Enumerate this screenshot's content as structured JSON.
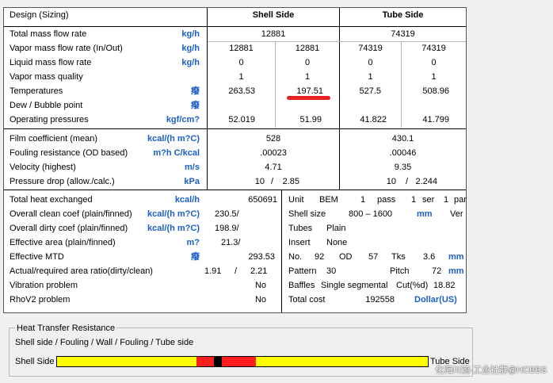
{
  "header": {
    "title": "Design (Sizing)",
    "shell": "Shell Side",
    "tube": "Tube Side"
  },
  "section1": [
    {
      "label": "Total mass flow rate",
      "unit": "kg/h",
      "shell": "12881",
      "tube": "74319"
    },
    {
      "label": "Vapor mass flow rate  (In/Out)",
      "unit": "kg/h",
      "s_in": "12881",
      "s_out": "12881",
      "t_in": "74319",
      "t_out": "74319"
    },
    {
      "label": "Liquid mass flow rate",
      "unit": "kg/h",
      "s_in": "0",
      "s_out": "0",
      "t_in": "0",
      "t_out": "0"
    },
    {
      "label": "Vapor mass quality",
      "unit": "",
      "s_in": "1",
      "s_out": "1",
      "t_in": "1",
      "t_out": "1"
    },
    {
      "label": "Temperatures",
      "unit": "癈",
      "s_in": "263.53",
      "s_out": "197.51",
      "t_in": "527.5",
      "t_out": "508.96"
    },
    {
      "label": "Dew / Bubble point",
      "unit": "癈"
    },
    {
      "label": "Operating pressures",
      "unit": "kgf/cm?",
      "s_in": "52.019",
      "s_out": "51.99",
      "t_in": "41.822",
      "t_out": "41.799"
    }
  ],
  "section2": [
    {
      "label": "Film coefficient (mean)",
      "unit": "kcal/(h m?C)",
      "shell": "528",
      "tube": "430.1"
    },
    {
      "label": "Fouling resistance (OD based)",
      "unit": "m?h C/kcal",
      "shell": ".00023",
      "tube": ".00046"
    },
    {
      "label": "Velocity (highest)",
      "unit": "m/s",
      "shell": "4.71",
      "tube": "9.35"
    },
    {
      "label": "Pressure drop (allow./calc.)",
      "unit": "kPa",
      "s_allow": "10",
      "s_sep": "/",
      "s_calc": "2.85",
      "t_allow": "10",
      "t_sep": "/",
      "t_calc": "2.244"
    }
  ],
  "section3": {
    "total_heat": {
      "label": "Total heat exchanged",
      "unit": "kcal/h",
      "value": "650691"
    },
    "clean_coef": {
      "label": "Overall clean coef (plain/finned)",
      "unit": "kcal/(h m?C)",
      "value": "230.5/"
    },
    "dirty_coef": {
      "label": "Overall dirty coef (plain/finned)",
      "unit": "kcal/(h m?C)",
      "value": "198.9/"
    },
    "eff_area": {
      "label": "Effective area (plain/finned)",
      "unit": "m?",
      "value": "21.3/"
    },
    "mtd": {
      "label": "Effective MTD",
      "unit": "癈",
      "value": "293.53"
    },
    "area_ratio": {
      "label": "Actual/required area ratio(dirty/clean)",
      "v1": "1.91",
      "sep": "/",
      "v2": "2.21"
    },
    "vibration": {
      "label": "Vibration problem",
      "value": "No"
    },
    "rhov2": {
      "label": "RhoV2 problem",
      "value": "No"
    }
  },
  "geometry": {
    "unit": {
      "k": "Unit",
      "type": "BEM",
      "n_pass": "1",
      "pass": "pass",
      "n_ser": "1",
      "ser": "ser",
      "n_par": "1",
      "par": "par"
    },
    "shell": {
      "k": "Shell size",
      "val": "800 –  1600",
      "unit": "mm",
      "orient": "Ver"
    },
    "tubes": {
      "k": "Tubes",
      "val": "Plain"
    },
    "insert": {
      "k": "Insert",
      "val": "None"
    },
    "no": {
      "k": "No.",
      "n": "92",
      "od_k": "OD",
      "od": "57",
      "tks_k": "Tks",
      "tks": "3.6",
      "unit": "mm"
    },
    "pattern": {
      "k": "Pattern",
      "val": "30",
      "pitch_k": "Pitch",
      "pitch": "72",
      "unit": "mm"
    },
    "baffles": {
      "k": "Baffles",
      "type": "Single segmental",
      "cut_k": "Cut(%d)",
      "cut": "18.82"
    },
    "cost": {
      "k": "Total cost",
      "val": "192558",
      "unit": "Dollar(US)"
    }
  },
  "resistance": {
    "title": "Heat Transfer Resistance",
    "subtitle": "Shell side / Fouling / Wall / Fouling / Tube side",
    "left_label": "Shell Side",
    "right_label": "Tube Side",
    "colors": {
      "film": "#ffff00",
      "fouling": "#ff1e1e",
      "wall": "#000000"
    }
  },
  "watermark": "化海川流-工业社群@HCBBS"
}
